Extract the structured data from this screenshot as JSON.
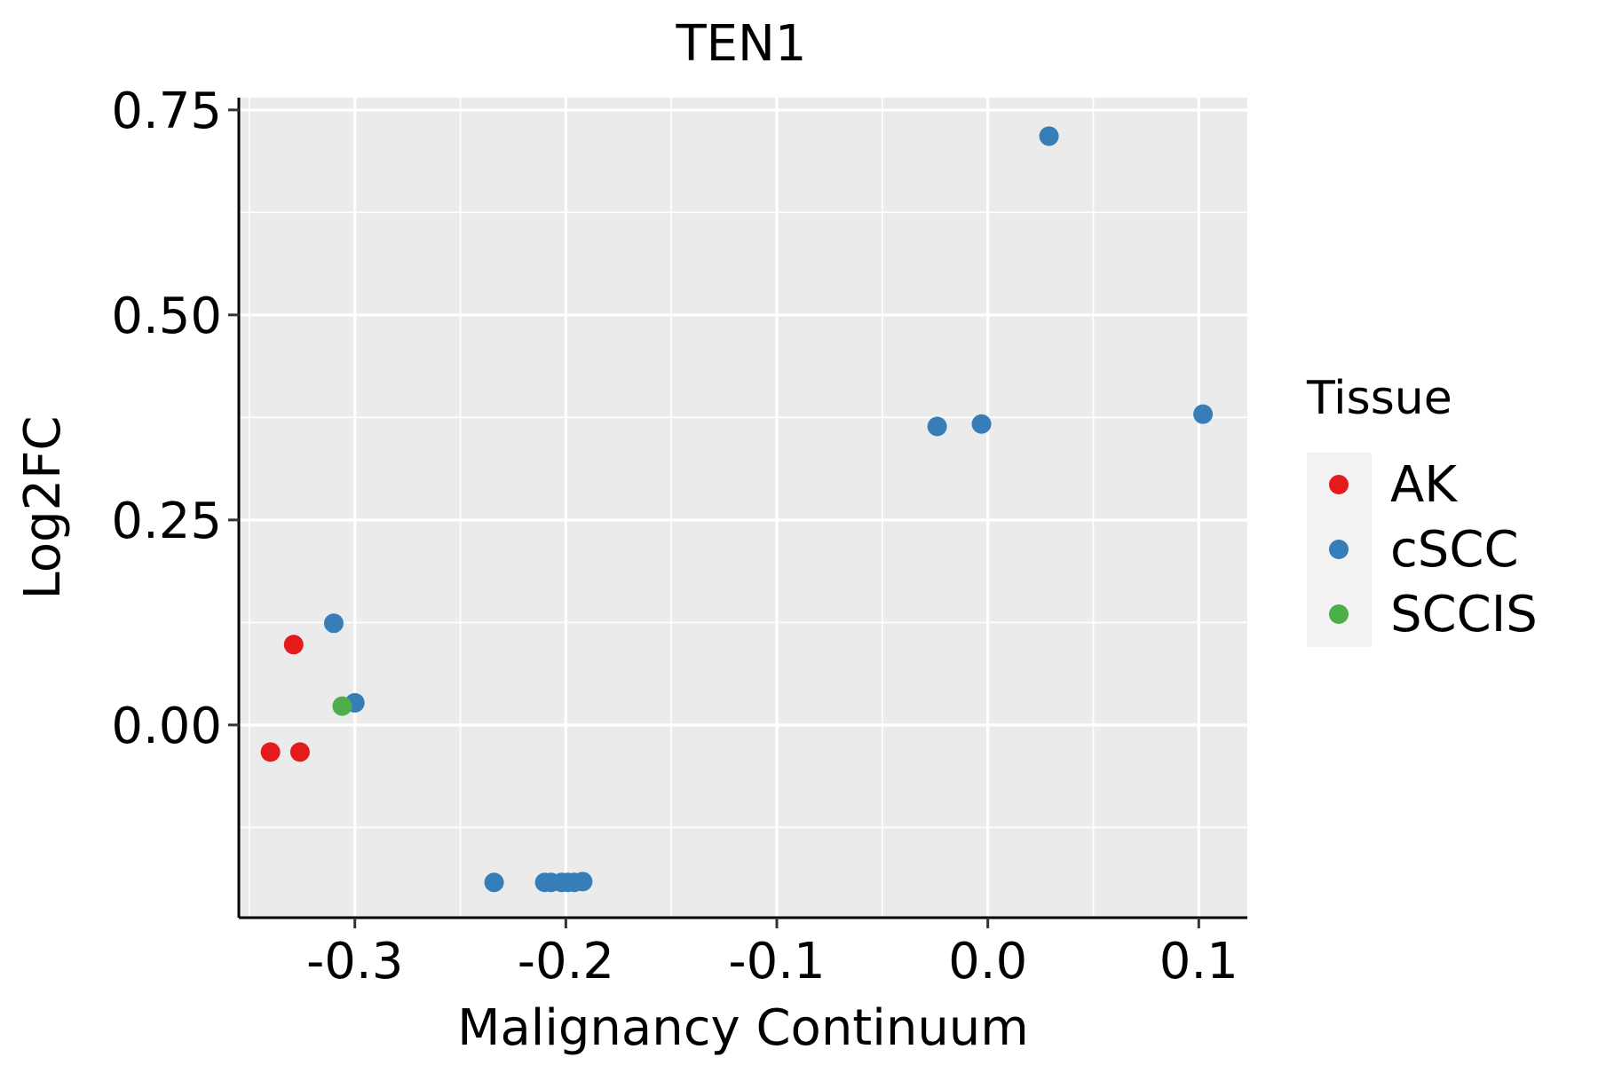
{
  "chart_data": {
    "type": "scatter",
    "title": "TEN1",
    "xlabel": "Malignancy Continuum",
    "ylabel": "Log2FC",
    "xlim": [
      -0.355,
      0.123
    ],
    "ylim": [
      -0.235,
      0.765
    ],
    "x_ticks": [
      -0.3,
      -0.2,
      -0.1,
      0.0,
      0.1
    ],
    "x_tick_labels": [
      "-0.3",
      "-0.2",
      "-0.1",
      "0.0",
      "0.1"
    ],
    "y_ticks": [
      0.0,
      0.25,
      0.5,
      0.75
    ],
    "y_tick_labels": [
      "0.00",
      "0.25",
      "0.50",
      "0.75"
    ],
    "grid": true,
    "legend": {
      "title": "Tissue",
      "placement": "right",
      "entries": [
        {
          "label": "AK",
          "color": "#e41a1c"
        },
        {
          "label": "cSCC",
          "color": "#377eb8"
        },
        {
          "label": "SCCIS",
          "color": "#4daf4a"
        }
      ]
    },
    "series": [
      {
        "name": "AK",
        "color": "#e41a1c",
        "points": [
          {
            "x": -0.329,
            "y": 0.098
          },
          {
            "x": -0.34,
            "y": -0.033
          },
          {
            "x": -0.326,
            "y": -0.033
          }
        ]
      },
      {
        "name": "cSCC",
        "color": "#377eb8",
        "points": [
          {
            "x": 0.029,
            "y": 0.718
          },
          {
            "x": -0.024,
            "y": 0.364
          },
          {
            "x": -0.003,
            "y": 0.367
          },
          {
            "x": 0.102,
            "y": 0.379
          },
          {
            "x": -0.31,
            "y": 0.124
          },
          {
            "x": -0.3,
            "y": 0.027
          },
          {
            "x": -0.234,
            "y": -0.192
          },
          {
            "x": -0.21,
            "y": -0.192
          },
          {
            "x": -0.207,
            "y": -0.192
          },
          {
            "x": -0.202,
            "y": -0.192
          },
          {
            "x": -0.199,
            "y": -0.192
          },
          {
            "x": -0.196,
            "y": -0.192
          },
          {
            "x": -0.192,
            "y": -0.191
          }
        ]
      },
      {
        "name": "SCCIS",
        "color": "#4daf4a",
        "points": [
          {
            "x": -0.306,
            "y": 0.023
          }
        ]
      }
    ]
  }
}
